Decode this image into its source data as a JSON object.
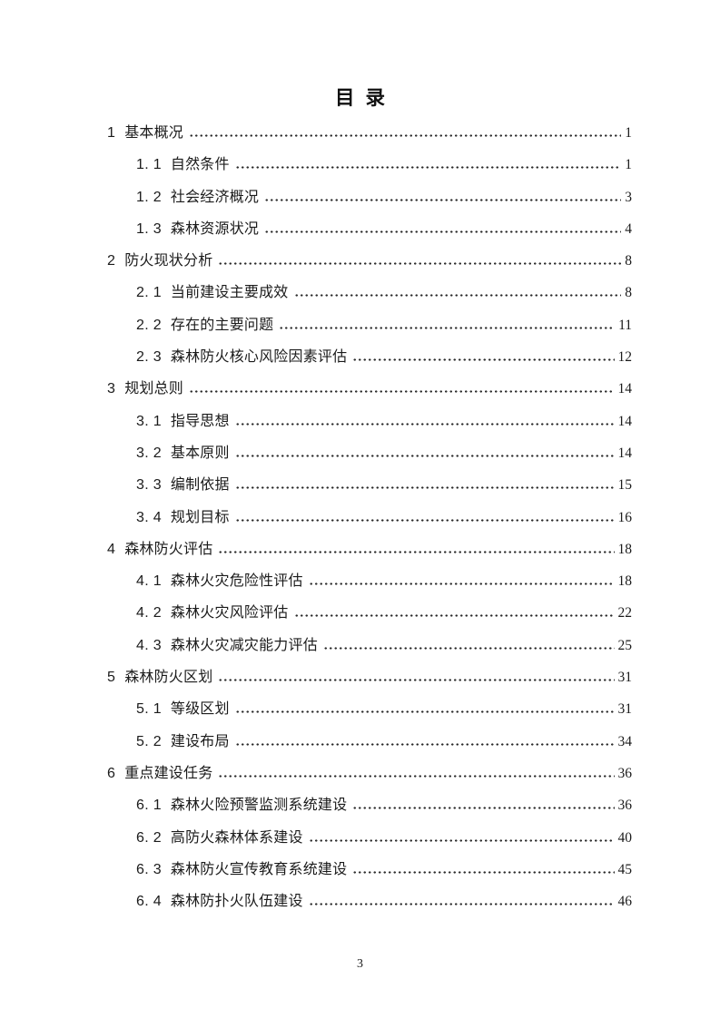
{
  "toc": {
    "title": "目 录",
    "entries": [
      {
        "level": 1,
        "num": "1",
        "title": "基本概况",
        "page": "1"
      },
      {
        "level": 2,
        "num": "1. 1",
        "title": "自然条件",
        "page": "1"
      },
      {
        "level": 2,
        "num": "1. 2",
        "title": "社会经济概况",
        "page": "3"
      },
      {
        "level": 2,
        "num": "1. 3",
        "title": "森林资源状况",
        "page": "4"
      },
      {
        "level": 1,
        "num": "2",
        "title": "防火现状分析",
        "page": "8"
      },
      {
        "level": 2,
        "num": "2. 1",
        "title": "当前建设主要成效",
        "page": "8"
      },
      {
        "level": 2,
        "num": "2. 2",
        "title": "存在的主要问题",
        "page": "11"
      },
      {
        "level": 2,
        "num": "2. 3",
        "title": "森林防火核心风险因素评估",
        "page": "12"
      },
      {
        "level": 1,
        "num": "3",
        "title": "规划总则",
        "page": "14"
      },
      {
        "level": 2,
        "num": "3. 1",
        "title": "指导思想",
        "page": "14"
      },
      {
        "level": 2,
        "num": "3. 2",
        "title": "基本原则",
        "page": "14"
      },
      {
        "level": 2,
        "num": "3. 3",
        "title": "编制依据",
        "page": "15"
      },
      {
        "level": 2,
        "num": "3. 4",
        "title": "规划目标",
        "page": "16"
      },
      {
        "level": 1,
        "num": "4",
        "title": "森林防火评估",
        "page": "18"
      },
      {
        "level": 2,
        "num": "4. 1",
        "title": "森林火灾危险性评估",
        "page": "18"
      },
      {
        "level": 2,
        "num": "4. 2",
        "title": "森林火灾风险评估",
        "page": "22"
      },
      {
        "level": 2,
        "num": "4. 3",
        "title": "森林火灾减灾能力评估",
        "page": "25"
      },
      {
        "level": 1,
        "num": "5",
        "title": "森林防火区划",
        "page": "31"
      },
      {
        "level": 2,
        "num": "5. 1",
        "title": "等级区划",
        "page": "31"
      },
      {
        "level": 2,
        "num": "5. 2",
        "title": "建设布局",
        "page": "34"
      },
      {
        "level": 1,
        "num": "6",
        "title": "重点建设任务",
        "page": "36"
      },
      {
        "level": 2,
        "num": "6. 1",
        "title": "森林火险预警监测系统建设",
        "page": "36"
      },
      {
        "level": 2,
        "num": "6. 2",
        "title": "高防火森林体系建设",
        "page": "40"
      },
      {
        "level": 2,
        "num": "6. 3",
        "title": "森林防火宣传教育系统建设",
        "page": "45"
      },
      {
        "level": 2,
        "num": "6. 4",
        "title": "森林防扑火队伍建设",
        "page": "46"
      }
    ]
  },
  "footer": {
    "page_number": "3"
  },
  "colors": {
    "text": "#1b1b1b",
    "leader_dots": "#2e2e2e",
    "background": "#ffffff"
  }
}
